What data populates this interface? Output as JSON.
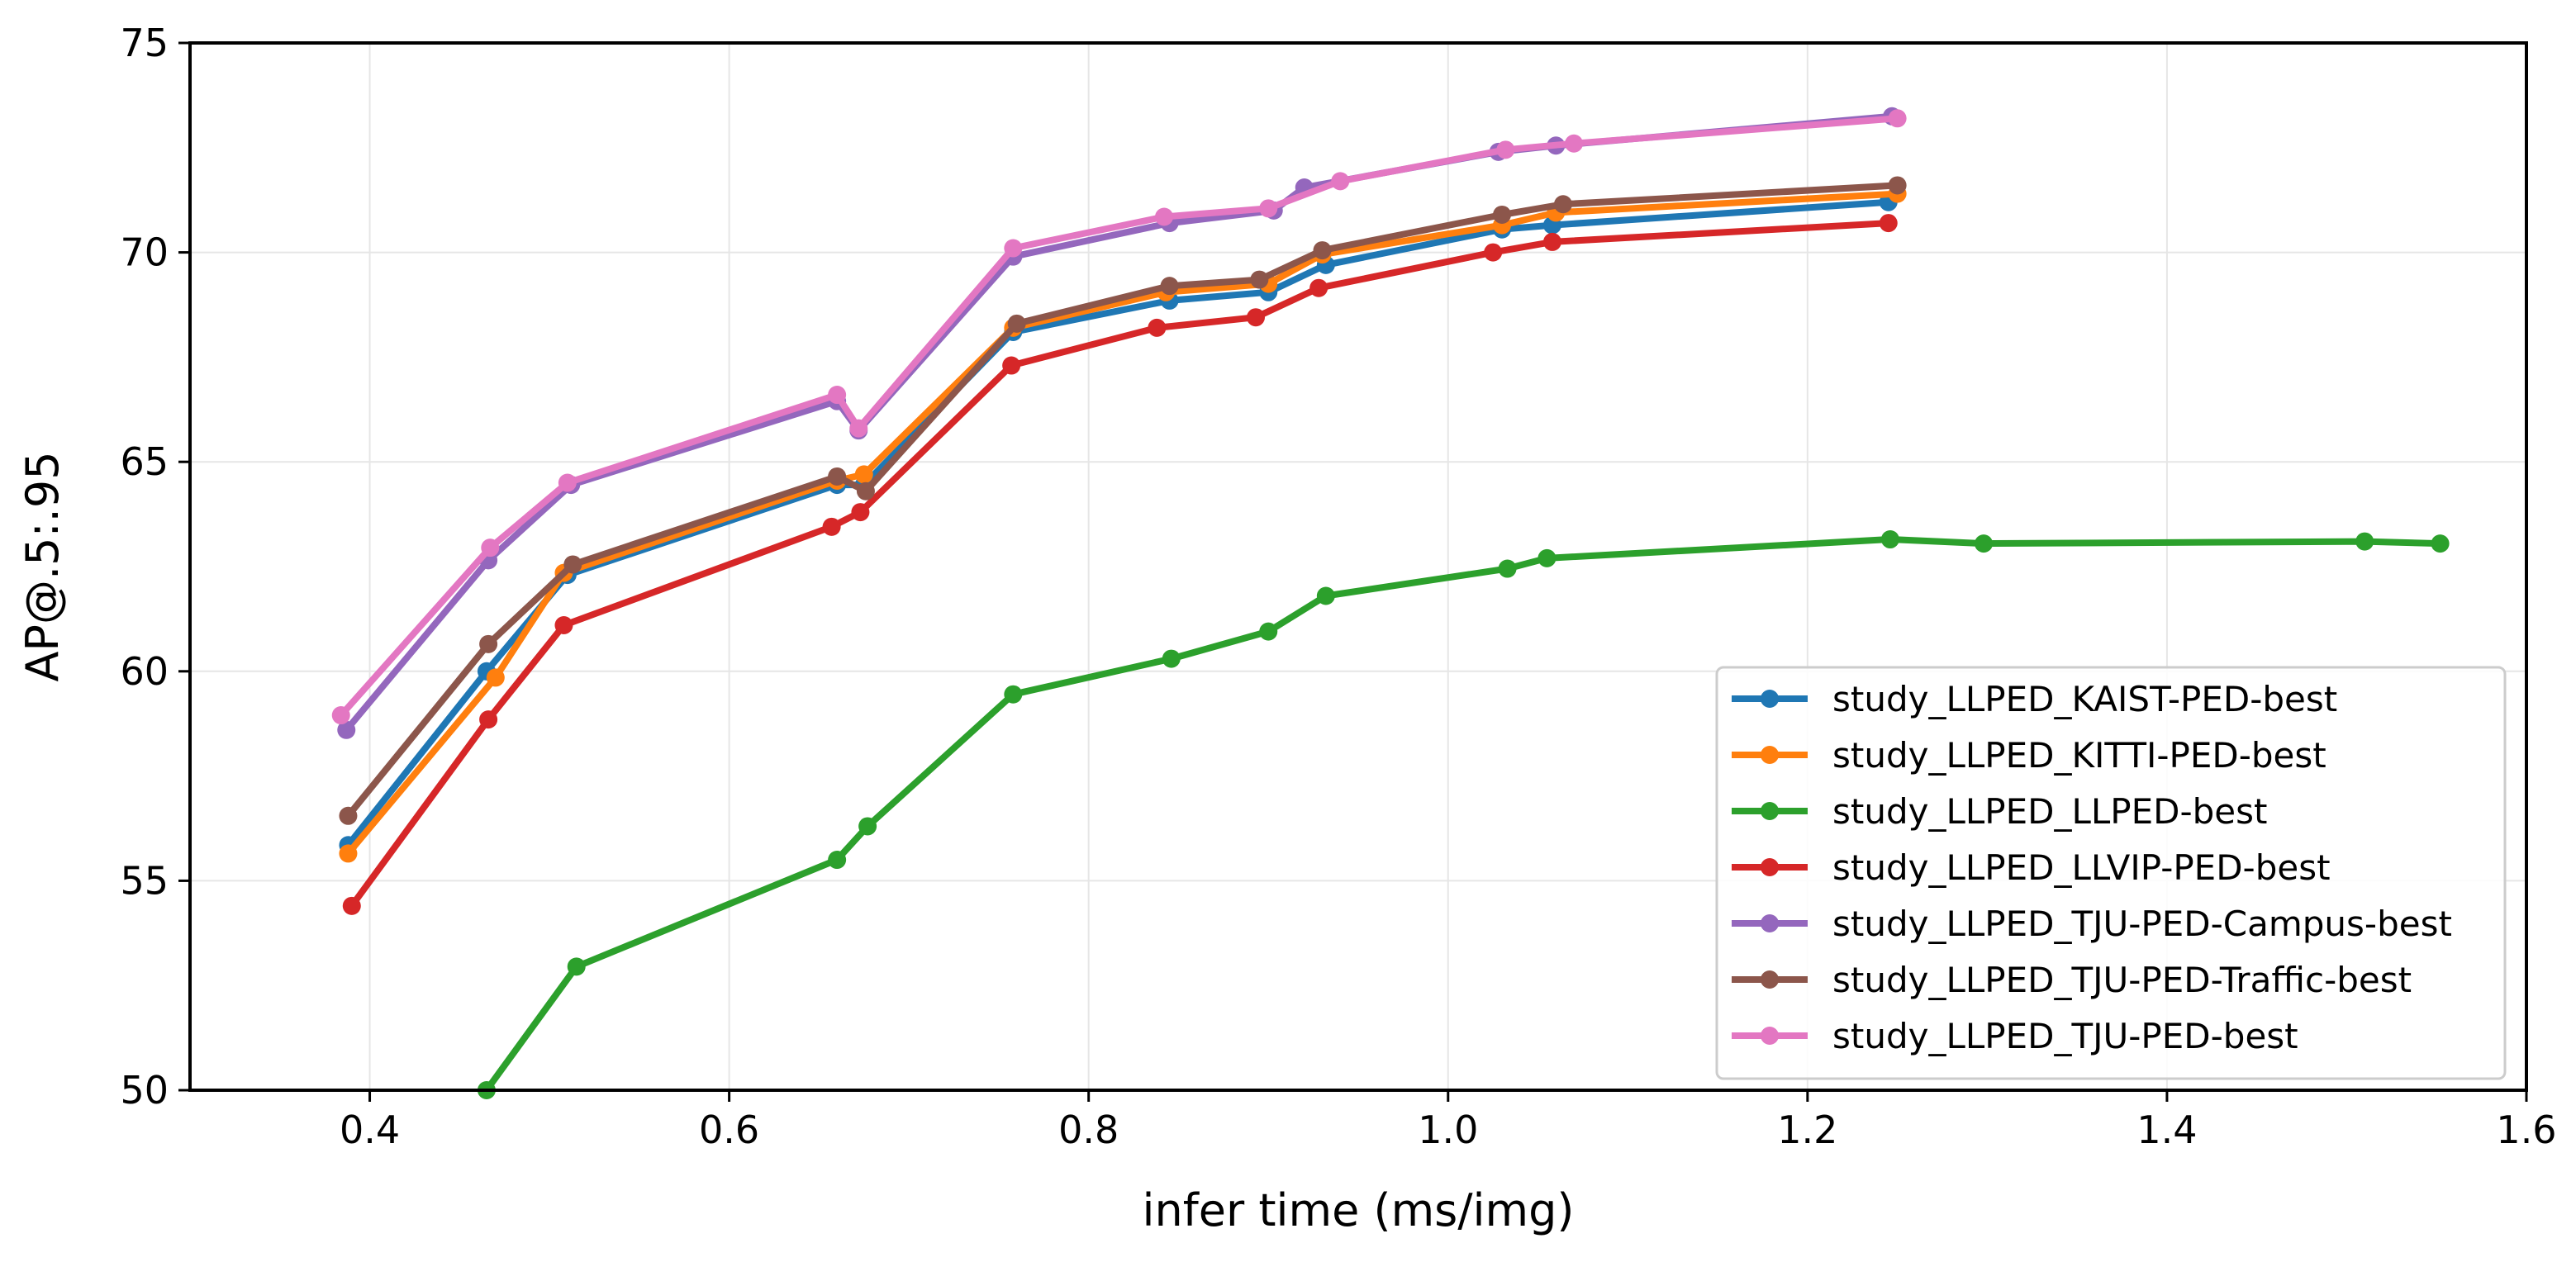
{
  "chart_data": {
    "type": "line",
    "title": "",
    "xlabel": "infer time (ms/img)",
    "ylabel": "AP@.5:.95",
    "xlim": [
      0.3,
      1.6
    ],
    "ylim": [
      50,
      75
    ],
    "xticks": [
      "0.4",
      "0.6",
      "0.8",
      "1.0",
      "1.2",
      "1.4",
      "1.6"
    ],
    "yticks": [
      "50",
      "55",
      "60",
      "65",
      "70",
      "75"
    ],
    "grid": true,
    "legend_position": "lower-right",
    "series": [
      {
        "name": "study_LLPED_KAIST-PED-best",
        "color": "#1f77b4",
        "points": [
          [
            0.388,
            55.85
          ],
          [
            0.465,
            60.0
          ],
          [
            0.51,
            62.3
          ],
          [
            0.66,
            64.45
          ],
          [
            0.675,
            64.45
          ],
          [
            0.758,
            68.1
          ],
          [
            0.845,
            68.85
          ],
          [
            0.9,
            69.05
          ],
          [
            0.932,
            69.7
          ],
          [
            1.03,
            70.55
          ],
          [
            1.058,
            70.65
          ],
          [
            1.245,
            71.2
          ]
        ]
      },
      {
        "name": "study_LLPED_KITTI-PED-best",
        "color": "#ff7f0e",
        "points": [
          [
            0.388,
            55.65
          ],
          [
            0.47,
            59.85
          ],
          [
            0.508,
            62.35
          ],
          [
            0.66,
            64.55
          ],
          [
            0.675,
            64.7
          ],
          [
            0.758,
            68.2
          ],
          [
            0.843,
            69.05
          ],
          [
            0.9,
            69.25
          ],
          [
            0.93,
            69.95
          ],
          [
            1.03,
            70.65
          ],
          [
            1.06,
            70.95
          ],
          [
            1.25,
            71.4
          ]
        ]
      },
      {
        "name": "study_LLPED_LLPED-best",
        "color": "#2ca02c",
        "points": [
          [
            0.465,
            50.0
          ],
          [
            0.515,
            52.95
          ],
          [
            0.66,
            55.5
          ],
          [
            0.677,
            56.3
          ],
          [
            0.758,
            59.45
          ],
          [
            0.846,
            60.3
          ],
          [
            0.9,
            60.95
          ],
          [
            0.932,
            61.8
          ],
          [
            1.033,
            62.45
          ],
          [
            1.055,
            62.7
          ],
          [
            1.246,
            63.15
          ],
          [
            1.298,
            63.05
          ],
          [
            1.51,
            63.1
          ],
          [
            1.552,
            63.05
          ]
        ]
      },
      {
        "name": "study_LLPED_LLVIP-PED-best",
        "color": "#d62728",
        "points": [
          [
            0.39,
            54.4
          ],
          [
            0.466,
            58.85
          ],
          [
            0.508,
            61.1
          ],
          [
            0.657,
            63.45
          ],
          [
            0.673,
            63.8
          ],
          [
            0.757,
            67.3
          ],
          [
            0.838,
            68.2
          ],
          [
            0.893,
            68.45
          ],
          [
            0.928,
            69.15
          ],
          [
            1.025,
            70.0
          ],
          [
            1.058,
            70.25
          ],
          [
            1.245,
            70.7
          ]
        ]
      },
      {
        "name": "study_LLPED_TJU-PED-Campus-best",
        "color": "#9467bd",
        "points": [
          [
            0.387,
            58.6
          ],
          [
            0.466,
            62.65
          ],
          [
            0.512,
            64.45
          ],
          [
            0.66,
            66.45
          ],
          [
            0.672,
            65.75
          ],
          [
            0.758,
            69.9
          ],
          [
            0.845,
            70.7
          ],
          [
            0.903,
            71.0
          ],
          [
            0.92,
            71.55
          ],
          [
            1.028,
            72.4
          ],
          [
            1.06,
            72.55
          ],
          [
            1.247,
            73.25
          ]
        ]
      },
      {
        "name": "study_LLPED_TJU-PED-Traffic-best",
        "color": "#8c564b",
        "points": [
          [
            0.388,
            56.55
          ],
          [
            0.466,
            60.65
          ],
          [
            0.513,
            62.55
          ],
          [
            0.66,
            64.65
          ],
          [
            0.676,
            64.3
          ],
          [
            0.76,
            68.3
          ],
          [
            0.845,
            69.2
          ],
          [
            0.895,
            69.35
          ],
          [
            0.93,
            70.05
          ],
          [
            1.03,
            70.9
          ],
          [
            1.064,
            71.15
          ],
          [
            1.25,
            71.6
          ]
        ]
      },
      {
        "name": "study_LLPED_TJU-PED-best",
        "color": "#e377c2",
        "points": [
          [
            0.384,
            58.95
          ],
          [
            0.467,
            62.95
          ],
          [
            0.51,
            64.5
          ],
          [
            0.66,
            66.6
          ],
          [
            0.672,
            65.8
          ],
          [
            0.758,
            70.1
          ],
          [
            0.842,
            70.85
          ],
          [
            0.9,
            71.05
          ],
          [
            0.94,
            71.7
          ],
          [
            1.032,
            72.45
          ],
          [
            1.07,
            72.6
          ],
          [
            1.25,
            73.2
          ]
        ]
      }
    ]
  }
}
